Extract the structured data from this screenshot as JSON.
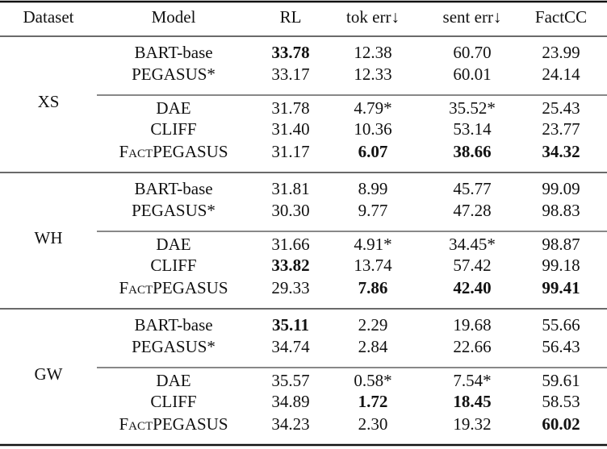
{
  "table": {
    "columns": [
      "Dataset",
      "Model",
      "RL",
      "tok err↓",
      "sent err↓",
      "FactCC"
    ],
    "groups": [
      {
        "dataset": "XS",
        "blocks": [
          [
            {
              "model": "BART-base",
              "cells": [
                "33.78",
                "12.38",
                "60.70",
                "23.99"
              ],
              "bold": [
                0
              ]
            },
            {
              "model": "PEGASUS*",
              "cells": [
                "33.17",
                "12.33",
                "60.01",
                "24.14"
              ],
              "bold": []
            }
          ],
          [
            {
              "model": "DAE",
              "cells": [
                "31.78",
                "4.79*",
                "35.52*",
                "25.43"
              ],
              "bold": []
            },
            {
              "model": "CLIFF",
              "cells": [
                "31.40",
                "10.36",
                "53.14",
                "23.77"
              ],
              "bold": []
            },
            {
              "model": "FactPEGASUS",
              "cells": [
                "31.17",
                "6.07",
                "38.66",
                "34.32"
              ],
              "bold": [
                1,
                2,
                3
              ],
              "small_caps": true
            }
          ]
        ]
      },
      {
        "dataset": "WH",
        "blocks": [
          [
            {
              "model": "BART-base",
              "cells": [
                "31.81",
                "8.99",
                "45.77",
                "99.09"
              ],
              "bold": []
            },
            {
              "model": "PEGASUS*",
              "cells": [
                "30.30",
                "9.77",
                "47.28",
                "98.83"
              ],
              "bold": []
            }
          ],
          [
            {
              "model": "DAE",
              "cells": [
                "31.66",
                "4.91*",
                "34.45*",
                "98.87"
              ],
              "bold": []
            },
            {
              "model": "CLIFF",
              "cells": [
                "33.82",
                "13.74",
                "57.42",
                "99.18"
              ],
              "bold": [
                0
              ]
            },
            {
              "model": "FactPEGASUS",
              "cells": [
                "29.33",
                "7.86",
                "42.40",
                "99.41"
              ],
              "bold": [
                1,
                2,
                3
              ],
              "small_caps": true
            }
          ]
        ]
      },
      {
        "dataset": "GW",
        "blocks": [
          [
            {
              "model": "BART-base",
              "cells": [
                "35.11",
                "2.29",
                "19.68",
                "55.66"
              ],
              "bold": [
                0
              ]
            },
            {
              "model": "PEGASUS*",
              "cells": [
                "34.74",
                "2.84",
                "22.66",
                "56.43"
              ],
              "bold": []
            }
          ],
          [
            {
              "model": "DAE",
              "cells": [
                "35.57",
                "0.58*",
                "7.54*",
                "59.61"
              ],
              "bold": []
            },
            {
              "model": "CLIFF",
              "cells": [
                "34.89",
                "1.72",
                "18.45",
                "58.53"
              ],
              "bold": [
                1,
                2
              ]
            },
            {
              "model": "FactPEGASUS",
              "cells": [
                "34.23",
                "2.30",
                "19.32",
                "60.02"
              ],
              "bold": [
                3
              ],
              "small_caps": true
            }
          ]
        ]
      }
    ]
  }
}
